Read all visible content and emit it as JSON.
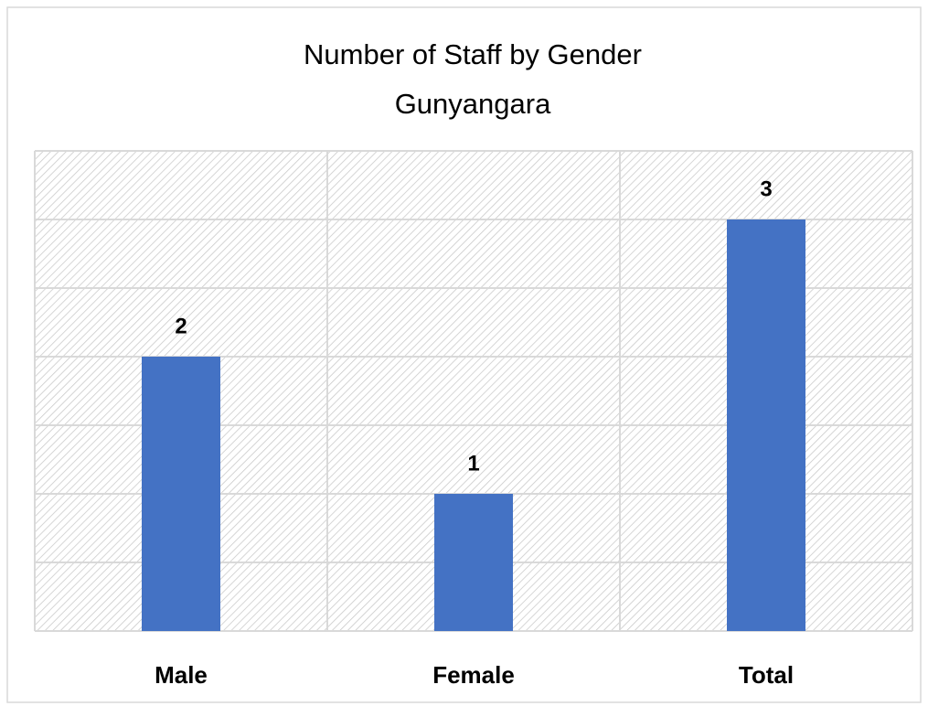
{
  "chart_data": {
    "type": "bar",
    "title": "Number of Staff by Gender",
    "subtitle": "Gunyangara",
    "categories": [
      "Male",
      "Female",
      "Total"
    ],
    "values": [
      2,
      1,
      3
    ],
    "color": "#4472c4",
    "ylim": [
      0,
      3.5
    ],
    "yticks": [
      0,
      0.5,
      1,
      1.5,
      2,
      2.5,
      3,
      3.5
    ],
    "grid": true
  }
}
